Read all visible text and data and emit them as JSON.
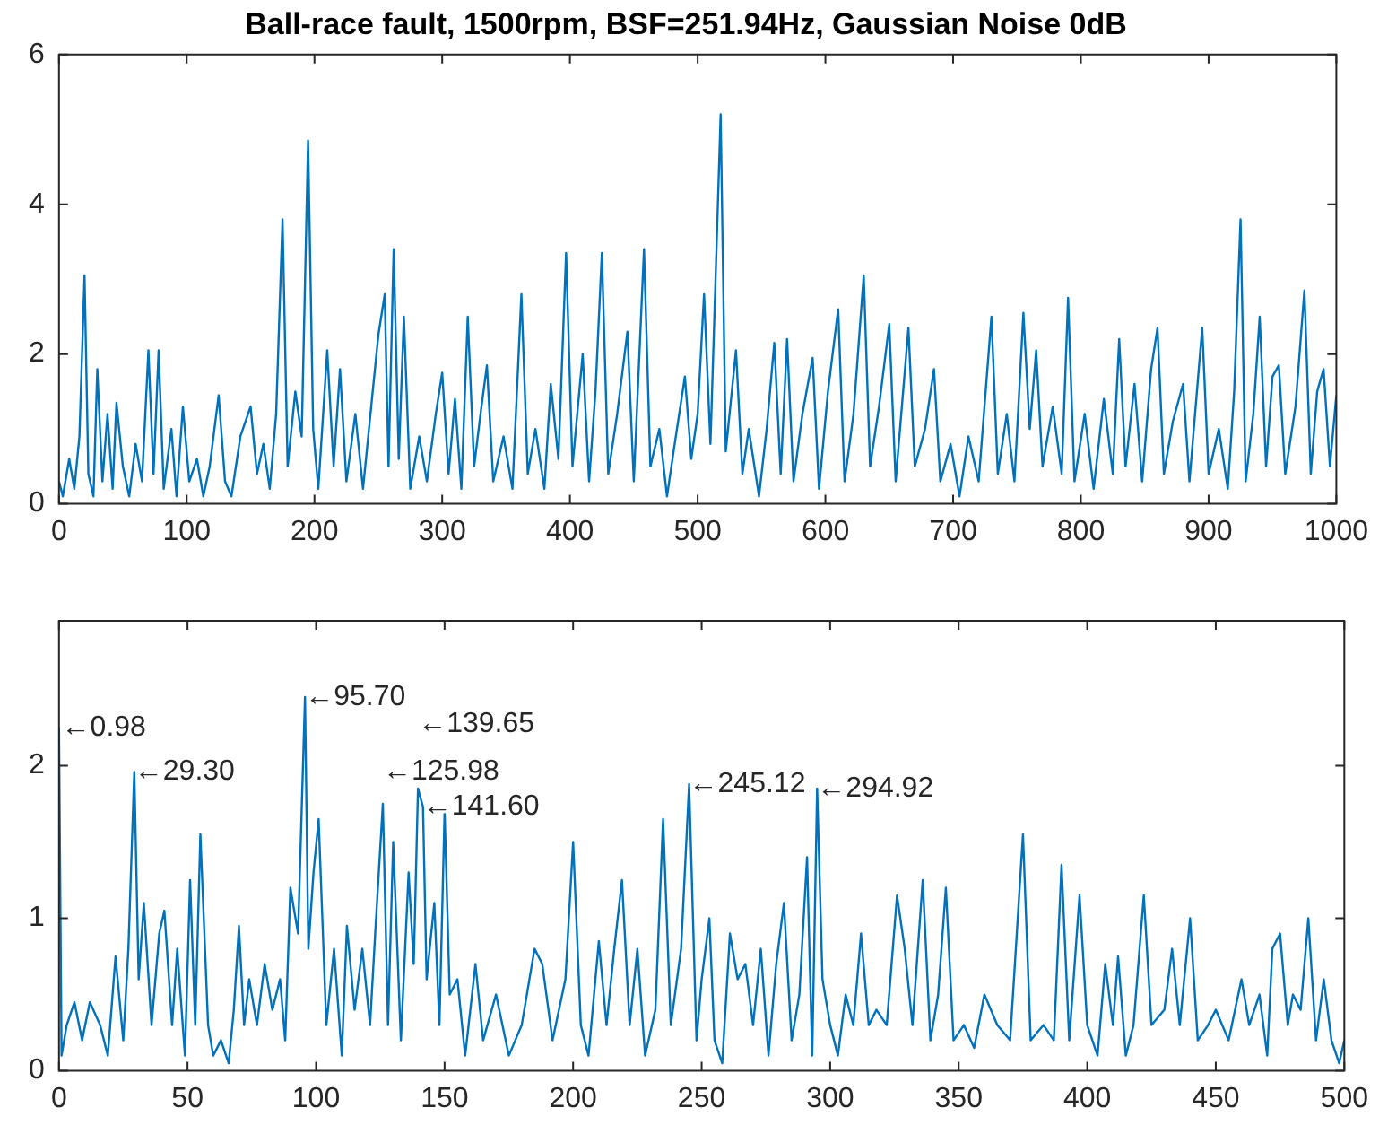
{
  "chart_data": [
    {
      "type": "line",
      "title": "Ball-race fault, 1500rpm, BSF=251.94Hz, Gaussian Noise 0dB",
      "xlim": [
        0,
        1000
      ],
      "xticks": [
        0,
        100,
        200,
        300,
        400,
        500,
        600,
        700,
        800,
        900,
        1000
      ],
      "ylim": [
        0,
        6
      ],
      "yticks": [
        0,
        2,
        4,
        6
      ],
      "grid": false,
      "series": [
        {
          "color": "#0072bd",
          "x": [
            0,
            3,
            8,
            12,
            16,
            20,
            23,
            27,
            30,
            34,
            38,
            42,
            45,
            50,
            55,
            60,
            65,
            70,
            74,
            78,
            82,
            88,
            92,
            97,
            102,
            108,
            113,
            118,
            125,
            130,
            135,
            142,
            150,
            155,
            160,
            165,
            170,
            175,
            179,
            185,
            190,
            195,
            199,
            203,
            210,
            215,
            220,
            225,
            232,
            238,
            245,
            250,
            255,
            258,
            262,
            266,
            270,
            275,
            282,
            288,
            295,
            300,
            305,
            310,
            315,
            320,
            325,
            330,
            335,
            340,
            348,
            355,
            362,
            367,
            373,
            380,
            385,
            391,
            397,
            402,
            410,
            415,
            420,
            425,
            430,
            437,
            445,
            450,
            458,
            463,
            470,
            476,
            482,
            490,
            495,
            500,
            505,
            510,
            518,
            522,
            530,
            535,
            540,
            548,
            554,
            560,
            565,
            570,
            575,
            582,
            590,
            595,
            602,
            610,
            615,
            622,
            630,
            635,
            642,
            650,
            655,
            665,
            670,
            678,
            685,
            690,
            698,
            705,
            712,
            720,
            730,
            735,
            742,
            748,
            755,
            760,
            765,
            770,
            778,
            785,
            790,
            795,
            803,
            810,
            818,
            825,
            830,
            835,
            842,
            848,
            855,
            860,
            865,
            872,
            880,
            885,
            895,
            900,
            908,
            915,
            920,
            925,
            929,
            935,
            940,
            945,
            950,
            955,
            960,
            968,
            975,
            980,
            985,
            990,
            995,
            1000
          ],
          "values": [
            0.3,
            0.1,
            0.6,
            0.2,
            0.9,
            3.05,
            0.4,
            0.1,
            1.8,
            0.3,
            1.2,
            0.2,
            1.35,
            0.5,
            0.1,
            0.8,
            0.3,
            2.05,
            0.4,
            2.05,
            0.2,
            1.0,
            0.1,
            1.3,
            0.3,
            0.6,
            0.1,
            0.5,
            1.45,
            0.3,
            0.1,
            0.9,
            1.3,
            0.4,
            0.8,
            0.2,
            1.2,
            3.8,
            0.5,
            1.5,
            0.9,
            4.85,
            1.0,
            0.2,
            2.05,
            0.5,
            1.8,
            0.3,
            1.2,
            0.2,
            1.4,
            2.25,
            2.8,
            0.5,
            3.4,
            0.6,
            2.5,
            0.2,
            0.9,
            0.3,
            1.2,
            1.75,
            0.4,
            1.4,
            0.2,
            2.5,
            0.5,
            1.2,
            1.85,
            0.3,
            0.9,
            0.2,
            2.8,
            0.4,
            1.0,
            0.2,
            1.6,
            0.6,
            3.35,
            0.5,
            2.0,
            0.3,
            1.5,
            3.35,
            0.4,
            1.2,
            2.3,
            0.3,
            3.4,
            0.5,
            1.0,
            0.1,
            0.8,
            1.7,
            0.6,
            1.2,
            2.8,
            0.8,
            5.2,
            0.7,
            2.05,
            0.4,
            1.0,
            0.1,
            1.0,
            2.15,
            0.4,
            2.2,
            0.3,
            1.2,
            1.95,
            0.2,
            1.5,
            2.6,
            0.3,
            1.2,
            3.05,
            0.5,
            1.3,
            2.4,
            0.3,
            2.35,
            0.5,
            1.0,
            1.8,
            0.3,
            0.8,
            0.1,
            0.9,
            0.3,
            2.5,
            0.4,
            1.2,
            0.3,
            2.55,
            1.0,
            2.05,
            0.5,
            1.3,
            0.4,
            2.75,
            0.3,
            1.2,
            0.2,
            1.4,
            0.4,
            2.2,
            0.5,
            1.6,
            0.3,
            1.8,
            2.35,
            0.4,
            1.1,
            1.6,
            0.3,
            2.35,
            0.4,
            1.0,
            0.2,
            1.5,
            3.8,
            0.3,
            1.2,
            2.5,
            0.5,
            1.7,
            1.85,
            0.4,
            1.3,
            2.85,
            0.4,
            1.5,
            1.8,
            0.5,
            1.45
          ]
        }
      ]
    },
    {
      "type": "line",
      "xlim": [
        0,
        500
      ],
      "xticks": [
        0,
        50,
        100,
        150,
        200,
        250,
        300,
        350,
        400,
        450,
        500
      ],
      "ylim": [
        0,
        2.95
      ],
      "yticks": [
        0,
        1,
        2
      ],
      "grid": false,
      "annotations": [
        {
          "text": "←0.98",
          "x": 0.98,
          "y": 2.25
        },
        {
          "text": "←29.30",
          "x": 29.3,
          "y": 1.96
        },
        {
          "text": "←95.70",
          "x": 95.7,
          "y": 2.45
        },
        {
          "text": "←125.98",
          "x": 125.98,
          "y": 1.75
        },
        {
          "text": "←139.65",
          "x": 139.65,
          "y": 1.85
        },
        {
          "text": "←141.60",
          "x": 141.6,
          "y": 1.73
        },
        {
          "text": "←245.12",
          "x": 245.12,
          "y": 1.88
        },
        {
          "text": "←294.92",
          "x": 294.92,
          "y": 1.85
        }
      ],
      "series": [
        {
          "color": "#0072bd",
          "x": [
            0,
            1,
            3,
            6,
            9,
            12,
            16,
            19,
            22,
            25,
            27,
            29.3,
            31,
            33,
            36,
            39,
            41,
            44,
            46,
            49,
            51,
            53,
            55,
            58,
            60,
            63,
            66,
            68,
            70,
            72,
            74,
            77,
            80,
            83,
            86,
            88,
            90,
            93,
            95.7,
            97,
            99,
            101,
            104,
            107,
            110,
            112,
            115,
            118,
            121,
            123,
            125.98,
            128,
            130,
            133,
            136,
            138,
            139.65,
            141.6,
            143,
            146,
            148,
            150,
            152,
            155,
            158,
            162,
            165,
            170,
            175,
            180,
            185,
            188,
            192,
            197,
            200,
            203,
            206,
            210,
            213,
            216,
            219,
            222,
            225,
            228,
            232,
            235,
            238,
            242,
            245.12,
            248,
            250,
            253,
            255,
            258,
            261,
            264,
            267,
            270,
            273,
            276,
            279,
            282,
            285,
            288,
            291,
            293,
            294.92,
            297,
            300,
            303,
            306,
            309,
            312,
            315,
            318,
            322,
            326,
            329,
            332,
            336,
            339,
            342,
            345,
            348,
            352,
            356,
            360,
            365,
            370,
            375,
            378,
            383,
            387,
            390,
            393,
            397,
            400,
            404,
            407,
            410,
            412,
            415,
            418,
            422,
            425,
            430,
            433,
            436,
            440,
            443,
            447,
            450,
            455,
            460,
            463,
            467,
            470,
            472,
            475,
            478,
            480,
            483,
            486,
            489,
            492,
            495,
            498,
            500
          ],
          "values": [
            2.25,
            0.1,
            0.3,
            0.45,
            0.2,
            0.45,
            0.3,
            0.1,
            0.75,
            0.2,
            0.8,
            1.96,
            0.6,
            1.1,
            0.3,
            0.9,
            1.05,
            0.3,
            0.8,
            0.1,
            1.25,
            0.3,
            1.55,
            0.3,
            0.1,
            0.2,
            0.05,
            0.4,
            0.95,
            0.3,
            0.6,
            0.3,
            0.7,
            0.4,
            0.6,
            0.2,
            1.2,
            0.9,
            2.45,
            0.8,
            1.3,
            1.65,
            0.3,
            0.8,
            0.1,
            0.95,
            0.4,
            0.8,
            0.3,
            0.9,
            1.75,
            0.3,
            1.5,
            0.2,
            1.3,
            0.7,
            1.85,
            1.73,
            0.6,
            1.1,
            0.3,
            1.7,
            0.5,
            0.6,
            0.1,
            0.7,
            0.2,
            0.5,
            0.1,
            0.3,
            0.8,
            0.7,
            0.2,
            0.6,
            1.5,
            0.3,
            0.1,
            0.85,
            0.3,
            0.8,
            1.25,
            0.3,
            0.8,
            0.1,
            0.4,
            1.65,
            0.3,
            0.8,
            1.88,
            0.2,
            0.6,
            1.0,
            0.2,
            0.05,
            0.9,
            0.6,
            0.7,
            0.3,
            0.8,
            0.1,
            0.7,
            1.1,
            0.2,
            0.5,
            1.4,
            0.1,
            1.85,
            0.6,
            0.3,
            0.1,
            0.5,
            0.3,
            0.9,
            0.3,
            0.4,
            0.3,
            1.15,
            0.8,
            0.3,
            1.25,
            0.2,
            0.5,
            1.2,
            0.2,
            0.3,
            0.15,
            0.5,
            0.3,
            0.2,
            1.55,
            0.2,
            0.3,
            0.2,
            1.35,
            0.2,
            1.15,
            0.3,
            0.1,
            0.7,
            0.3,
            0.75,
            0.1,
            0.3,
            1.15,
            0.3,
            0.4,
            0.8,
            0.3,
            1.0,
            0.2,
            0.3,
            0.4,
            0.2,
            0.6,
            0.3,
            0.5,
            0.1,
            0.8,
            0.9,
            0.3,
            0.5,
            0.4,
            1.0,
            0.2,
            0.6,
            0.2,
            0.05,
            0.2
          ]
        }
      ]
    }
  ]
}
